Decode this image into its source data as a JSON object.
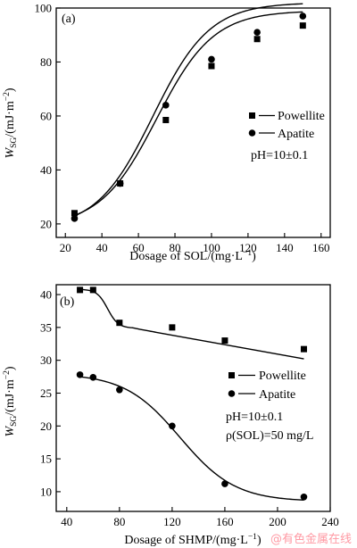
{
  "chart_data": [
    {
      "type": "line",
      "panel_label": "(a)",
      "xlabel_main": "Dosage of SOL/(mg",
      "xlabel_mid": "·L",
      "xlabel_sup": "−1",
      "xlabel_tail": ")",
      "ylabel_w": "W",
      "ylabel_sub": "SG",
      "ylabel_mid": "/(mJ·m",
      "ylabel_sup": "−2",
      "ylabel_tail": ")",
      "xlim": [
        15,
        165
      ],
      "ylim": [
        15,
        100
      ],
      "xticks": [
        20,
        40,
        60,
        80,
        100,
        120,
        140,
        160
      ],
      "yticks": [
        20,
        40,
        60,
        80,
        100
      ],
      "series": [
        {
          "name": "Powellite",
          "marker": "square",
          "x": [
            25,
            50,
            75,
            100,
            125,
            150
          ],
          "y": [
            24,
            35,
            58.5,
            78.5,
            88.5,
            93.5
          ],
          "curve": {
            "A1": 19,
            "A2": 99,
            "x0": 70,
            "dx": 15.5
          }
        },
        {
          "name": "Apatite",
          "marker": "circle",
          "x": [
            25,
            50,
            75,
            100,
            125,
            150
          ],
          "y": [
            22,
            35,
            64,
            81,
            91,
            97
          ],
          "curve": {
            "A1": 18,
            "A2": 102,
            "x0": 68,
            "dx": 15.5
          }
        }
      ],
      "annotations": [
        "pH=10±0.1"
      ]
    },
    {
      "type": "line",
      "panel_label": "(b)",
      "xlabel_main": "Dosage of SHMP/(mg",
      "xlabel_mid": "·L",
      "xlabel_sup": "−1",
      "xlabel_tail": ")",
      "ylabel_w": "W",
      "ylabel_sub": "SG",
      "ylabel_mid": "/(mJ·m",
      "ylabel_sup": "−2",
      "ylabel_tail": ")",
      "xlim": [
        32,
        240
      ],
      "ylim": [
        7,
        41.5
      ],
      "xticks": [
        40,
        80,
        120,
        160,
        200,
        240
      ],
      "yticks": [
        10,
        15,
        20,
        25,
        30,
        35,
        40
      ],
      "series": [
        {
          "name": "Powellite",
          "marker": "square",
          "x": [
            50,
            60,
            80,
            120,
            160,
            220
          ],
          "y": [
            40.7,
            40.7,
            35.7,
            35,
            33,
            31.7
          ],
          "curve": {
            "A1": 40.8,
            "A2": 34.9,
            "x0": 71,
            "dx": 4,
            "lin": -0.036,
            "lin_from": 90
          }
        },
        {
          "name": "Apatite",
          "marker": "circle",
          "x": [
            50,
            60,
            80,
            120,
            160,
            220
          ],
          "y": [
            27.8,
            27.4,
            25.5,
            20,
            11.2,
            9.2
          ],
          "curve": {
            "A1": 28,
            "A2": 8.5,
            "x0": 126,
            "dx": 21
          }
        }
      ],
      "annotations": [
        "pH=10±0.1",
        "ρ(SOL)=50 mg/L"
      ]
    }
  ],
  "watermark": "@有色金属在线"
}
